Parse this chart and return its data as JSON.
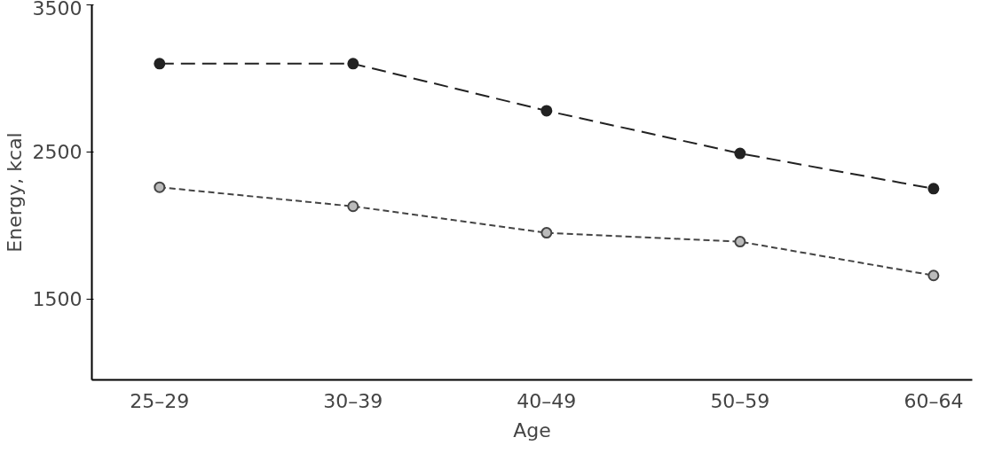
{
  "chart_data": {
    "type": "line",
    "xlabel": "Age",
    "ylabel": "Energy, kcal",
    "categories": [
      "25–29",
      "30–39",
      "40–49",
      "50–59",
      "60–64"
    ],
    "series": [
      {
        "color": "#222222",
        "values": [
          3100,
          3100,
          2780,
          2490,
          2250
        ],
        "line_style": "dashed",
        "marker": "circle"
      },
      {
        "color": "#444444",
        "values": [
          2260,
          2130,
          1950,
          1890,
          1660
        ],
        "line_style": "dotted",
        "marker": "circle"
      }
    ],
    "ylim": [
      950,
      3500
    ],
    "yticks": [
      1500,
      2500,
      3500
    ],
    "grid": false
  }
}
